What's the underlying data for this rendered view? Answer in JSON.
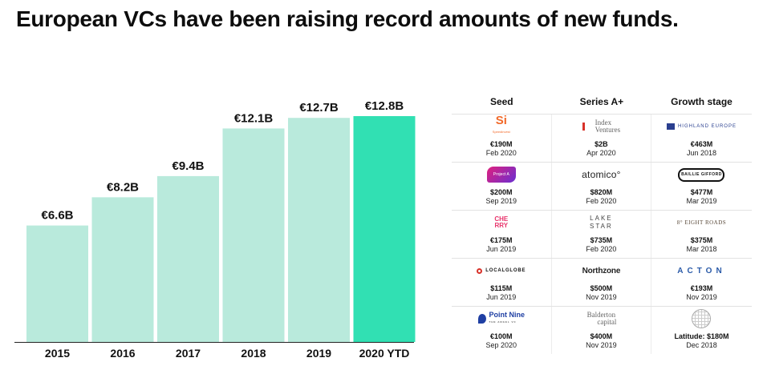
{
  "headline": "European VCs have been raising record amounts of new funds.",
  "colors": {
    "bar": "#b9eadc",
    "bar_highlight": "#31e0b3"
  },
  "chart_data": {
    "type": "bar",
    "title": "European VCs have been raising record amounts of new funds.",
    "categories": [
      "2015",
      "2016",
      "2017",
      "2018",
      "2019",
      "2020 YTD"
    ],
    "values": [
      6.6,
      8.2,
      9.4,
      12.1,
      12.7,
      12.8
    ],
    "value_labels": [
      "€6.6B",
      "€8.2B",
      "€9.4B",
      "€12.1B",
      "€12.7B",
      "€12.8B"
    ],
    "highlight_index": 5,
    "ylim": [
      0,
      12.8
    ],
    "grid": false,
    "legend": "none"
  },
  "funds_table": {
    "columns": [
      "Seed",
      "Series A+",
      "Growth stage"
    ],
    "rows": [
      [
        {
          "logo": "si-icon",
          "logo_text": "Si",
          "logo_sub": "Speedinvest",
          "amount": "€190M",
          "date": "Feb 2020"
        },
        {
          "logo": "index-ventures-icon",
          "logo_text": "Index",
          "logo_text2": "Ventures",
          "amount": "$2B",
          "date": "Apr 2020"
        },
        {
          "logo": "highland-europe-icon",
          "logo_text": "HIGHLAND EUROPE",
          "amount": "€463M",
          "date": "Jun 2018"
        }
      ],
      [
        {
          "logo": "project-a-icon",
          "logo_text": "Project A",
          "amount": "$200M",
          "date": "Sep 2019"
        },
        {
          "logo": "atomico-icon",
          "logo_text": "atomico°",
          "amount": "$820M",
          "date": "Feb 2020"
        },
        {
          "logo": "baillie-gifford-icon",
          "logo_text": "BAILLIE GIFFORD",
          "amount": "$477M",
          "date": "Mar 2019"
        }
      ],
      [
        {
          "logo": "cherry-icon",
          "logo_text": "CHERRY",
          "amount": "€175M",
          "date": "Jun 2019"
        },
        {
          "logo": "lake-star-icon",
          "logo_text": "LAKE",
          "logo_text2": "STAR",
          "amount": "$735M",
          "date": "Feb 2020"
        },
        {
          "logo": "eight-roads-icon",
          "logo_text": "8° EIGHT ROADS",
          "amount": "$375M",
          "date": "Mar 2018"
        }
      ],
      [
        {
          "logo": "localglobe-icon",
          "logo_text": "LOCALGLOBE",
          "amount": "$115M",
          "date": "Jun 2019"
        },
        {
          "logo": "northzone-icon",
          "logo_text": "Northzone",
          "amount": "$500M",
          "date": "Nov 2019"
        },
        {
          "logo": "acton-icon",
          "logo_text": "ACTON",
          "amount": "€193M",
          "date": "Nov 2019"
        }
      ],
      [
        {
          "logo": "point-nine-icon",
          "logo_text": "Point Nine",
          "logo_sub": "THE ANGEL VC",
          "amount": "€100M",
          "date": "Sep 2020"
        },
        {
          "logo": "balderton-capital-icon",
          "logo_text": "Balderton",
          "logo_text2": "capital",
          "amount": "$400M",
          "date": "Nov 2019"
        },
        {
          "logo": "latitude-icon",
          "amount": "Latitude: $180M",
          "date": "Dec 2018"
        }
      ]
    ]
  }
}
